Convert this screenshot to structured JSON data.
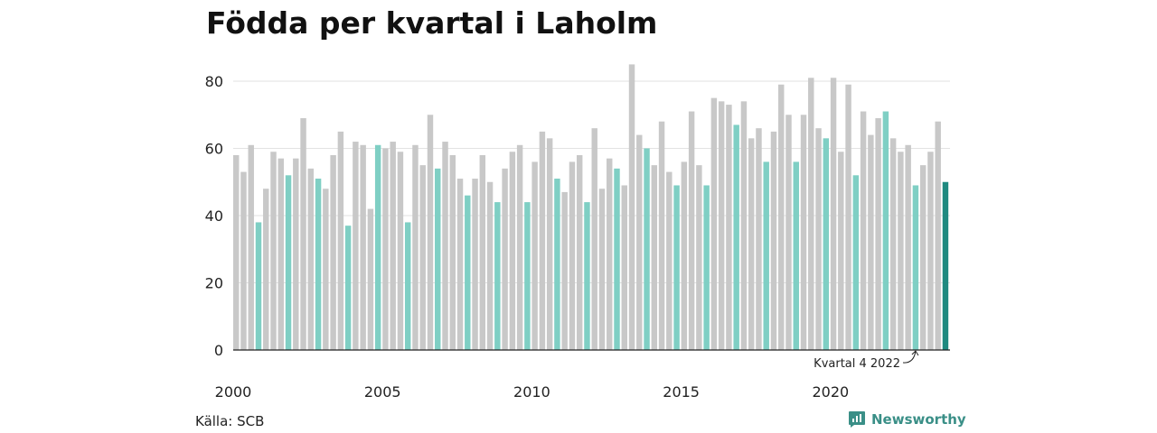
{
  "chart_data": {
    "type": "bar",
    "title": "Födda per kvartal i Laholm",
    "xlabel": "",
    "ylabel": "",
    "ylim": [
      0,
      85
    ],
    "yticks": [
      0,
      20,
      40,
      60,
      80
    ],
    "xtick_labels": [
      "2000",
      "2005",
      "2010",
      "2015",
      "2020"
    ],
    "grid": true,
    "legend": "none",
    "start_year": 2000,
    "categories": [
      "2000 K1",
      "2000 K2",
      "2000 K3",
      "2000 K4",
      "2001 K1",
      "2001 K2",
      "2001 K3",
      "2001 K4",
      "2002 K1",
      "2002 K2",
      "2002 K3",
      "2002 K4",
      "2003 K1",
      "2003 K2",
      "2003 K3",
      "2003 K4",
      "2004 K1",
      "2004 K2",
      "2004 K3",
      "2004 K4",
      "2005 K1",
      "2005 K2",
      "2005 K3",
      "2005 K4",
      "2006 K1",
      "2006 K2",
      "2006 K3",
      "2006 K4",
      "2007 K1",
      "2007 K2",
      "2007 K3",
      "2007 K4",
      "2008 K1",
      "2008 K2",
      "2008 K3",
      "2008 K4",
      "2009 K1",
      "2009 K2",
      "2009 K3",
      "2009 K4",
      "2010 K1",
      "2010 K2",
      "2010 K3",
      "2010 K4",
      "2011 K1",
      "2011 K2",
      "2011 K3",
      "2011 K4",
      "2012 K1",
      "2012 K2",
      "2012 K3",
      "2012 K4",
      "2013 K1",
      "2013 K2",
      "2013 K3",
      "2013 K4",
      "2014 K1",
      "2014 K2",
      "2014 K3",
      "2014 K4",
      "2015 K1",
      "2015 K2",
      "2015 K3",
      "2015 K4",
      "2016 K1",
      "2016 K2",
      "2016 K3",
      "2016 K4",
      "2017 K1",
      "2017 K2",
      "2017 K3",
      "2017 K4",
      "2018 K1",
      "2018 K2",
      "2018 K3",
      "2018 K4",
      "2019 K1",
      "2019 K2",
      "2019 K3",
      "2019 K4",
      "2020 K1",
      "2020 K2",
      "2020 K3",
      "2020 K4",
      "2021 K1",
      "2021 K2",
      "2021 K3",
      "2021 K4",
      "2022 K1",
      "2022 K2",
      "2022 K3",
      "2022 K4",
      "2023 K1",
      "2023 K2",
      "2023 K3",
      "2023 K4"
    ],
    "values": [
      58,
      53,
      61,
      38,
      48,
      59,
      57,
      52,
      57,
      69,
      54,
      51,
      48,
      58,
      65,
      37,
      62,
      61,
      42,
      61,
      60,
      62,
      59,
      38,
      61,
      55,
      70,
      54,
      62,
      58,
      51,
      46,
      51,
      58,
      50,
      44,
      54,
      59,
      61,
      44,
      56,
      65,
      63,
      51,
      47,
      56,
      58,
      44,
      66,
      48,
      57,
      54,
      49,
      85,
      64,
      60,
      55,
      68,
      53,
      49,
      56,
      71,
      55,
      49,
      75,
      74,
      73,
      67,
      74,
      63,
      66,
      56,
      65,
      79,
      70,
      56,
      70,
      81,
      66,
      63,
      81,
      59,
      79,
      52,
      71,
      64,
      69,
      71,
      63,
      59,
      61,
      49,
      55,
      59,
      68,
      50
    ],
    "colors": {
      "default": "#c8c8c8",
      "quarter4": "#7fcfc4",
      "latest": "#1f8a80"
    },
    "annotation": {
      "text": "Kvartal 4 2022",
      "target_index": 91
    }
  },
  "footer": {
    "source": "Källa: SCB",
    "brand": "Newsworthy"
  }
}
